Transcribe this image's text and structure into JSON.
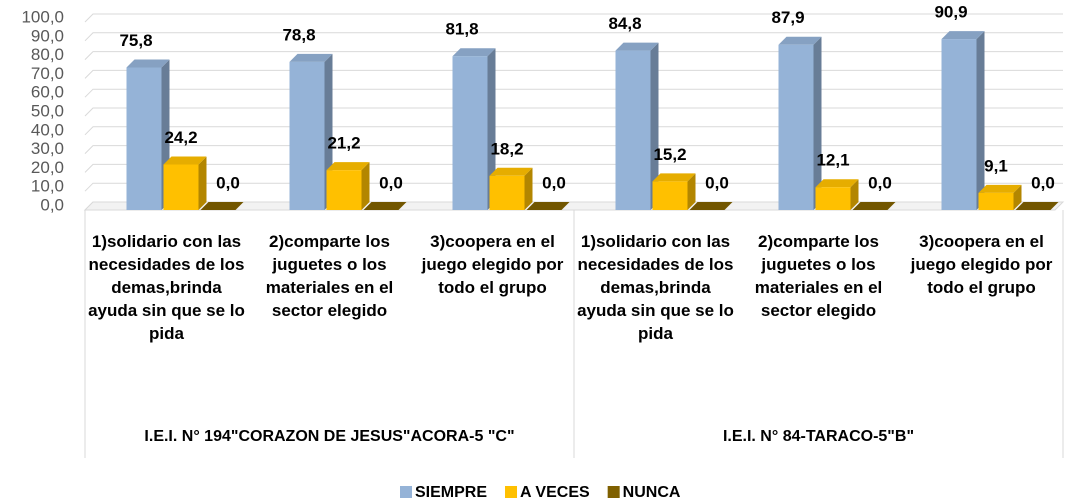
{
  "chart_data": {
    "type": "bar",
    "categories": [
      "1)solidario con las necesidades de los demas,brinda ayuda sin que se lo pida",
      "2)comparte los juguetes o los materiales en el sector elegido",
      "3)coopera en el juego elegido por todo el grupo",
      "1)solidario con las necesidades de los demas,brinda ayuda sin que se lo pida",
      "2)comparte los juguetes o los materiales en el sector elegido",
      "3)coopera en el juego elegido por todo el grupo"
    ],
    "groups": [
      "I.E.I. N° 194\"CORAZON DE JESUS\"ACORA-5 \"C\"",
      "I.E.I. N° 84-TARACO-5\"B\""
    ],
    "series": [
      {
        "name": "SIEMPRE",
        "color": "#95b3d7",
        "values": [
          75.8,
          78.8,
          81.8,
          84.8,
          87.9,
          90.9
        ],
        "value_labels": [
          "75,8",
          "78,8",
          "81,8",
          "84,8",
          "87,9",
          "90,9"
        ]
      },
      {
        "name": "A VECES",
        "color": "#ffc000",
        "values": [
          24.2,
          21.2,
          18.2,
          15.2,
          12.1,
          9.1
        ],
        "value_labels": [
          "24,2",
          "21,2",
          "18,2",
          "15,2",
          "12,1",
          "9,1"
        ]
      },
      {
        "name": "NUNCA",
        "color": "#7f6000",
        "values": [
          0,
          0,
          0,
          0,
          0,
          0
        ],
        "value_labels": [
          "0,0",
          "0,0",
          "0,0",
          "0,0",
          "0,0",
          "0,0"
        ]
      }
    ],
    "ylim": [
      0,
      100
    ],
    "yticks": [
      {
        "value": 0,
        "label": "0,0"
      },
      {
        "value": 10,
        "label": "10,0"
      },
      {
        "value": 20,
        "label": "20,0"
      },
      {
        "value": 30,
        "label": "30,0"
      },
      {
        "value": 40,
        "label": "40,0"
      },
      {
        "value": 50,
        "label": "50,0"
      },
      {
        "value": 60,
        "label": "60,0"
      },
      {
        "value": 70,
        "label": "70,0"
      },
      {
        "value": 80,
        "label": "80,0"
      },
      {
        "value": 90,
        "label": "90,0"
      },
      {
        "value": 100,
        "label": "100,0"
      }
    ],
    "grid": true,
    "legend": "bottom"
  }
}
